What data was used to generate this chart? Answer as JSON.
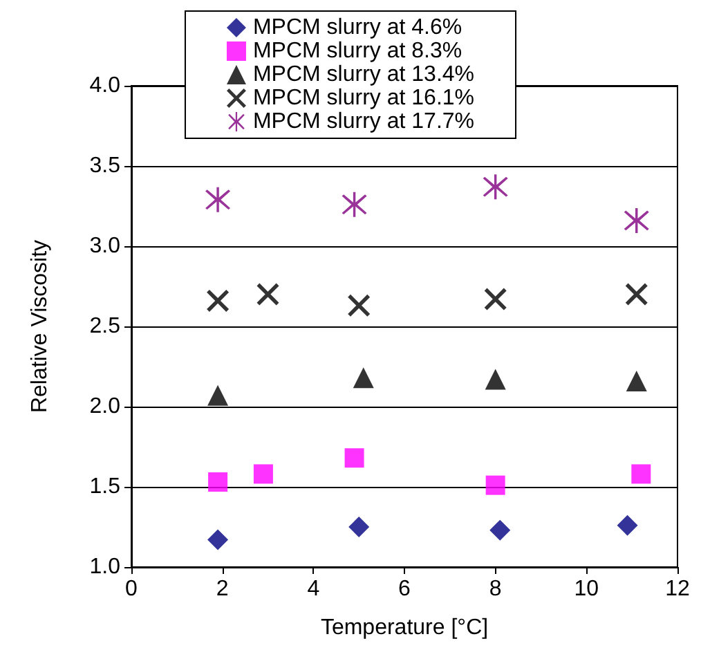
{
  "chart_data": {
    "type": "scatter",
    "xlabel": "Temperature [°C]",
    "ylabel": "Relative Viscosity",
    "xlim": [
      0,
      12
    ],
    "xticks": [
      0,
      2,
      4,
      6,
      8,
      10,
      12
    ],
    "ylim": [
      1,
      4
    ],
    "yticks": [
      {
        "value": 1,
        "label": "1.0"
      },
      {
        "value": 1.5,
        "label": "1.5"
      },
      {
        "value": 2,
        "label": "2.0"
      },
      {
        "value": 2.5,
        "label": "2.5"
      },
      {
        "value": 3,
        "label": "3.0"
      },
      {
        "value": 3.5,
        "label": "3.5"
      },
      {
        "value": 4,
        "label": "4.0"
      }
    ],
    "grid": "y",
    "legend": "top",
    "series": [
      {
        "name": "MPCM slurry at 4.6%",
        "color": "#000080",
        "marker": "diamond",
        "x": [
          1.9,
          5.0,
          8.1,
          10.9
        ],
        "values": [
          1.17,
          1.25,
          1.23,
          1.26
        ]
      },
      {
        "name": "MPCM slurry at 8.3%",
        "color": "#ff00ff",
        "marker": "square",
        "x": [
          1.9,
          2.9,
          4.9,
          8.0,
          11.2
        ],
        "values": [
          1.53,
          1.58,
          1.68,
          1.51,
          1.58
        ]
      },
      {
        "name": "MPCM slurry at 13.4%",
        "color": "#000000",
        "marker": "triangle",
        "x": [
          1.9,
          5.1,
          8.0,
          11.1
        ],
        "values": [
          2.07,
          2.18,
          2.17,
          2.16
        ]
      },
      {
        "name": "MPCM slurry at 16.1%",
        "color": "#000000",
        "marker": "cross",
        "x": [
          1.9,
          3.0,
          5.0,
          8.0,
          11.1
        ],
        "values": [
          2.66,
          2.7,
          2.63,
          2.67,
          2.7
        ]
      },
      {
        "name": "MPCM slurry at 17.7%",
        "color": "#800080",
        "marker": "star",
        "x": [
          1.9,
          4.9,
          8.0,
          11.1
        ],
        "values": [
          3.29,
          3.26,
          3.37,
          3.16
        ]
      }
    ]
  }
}
